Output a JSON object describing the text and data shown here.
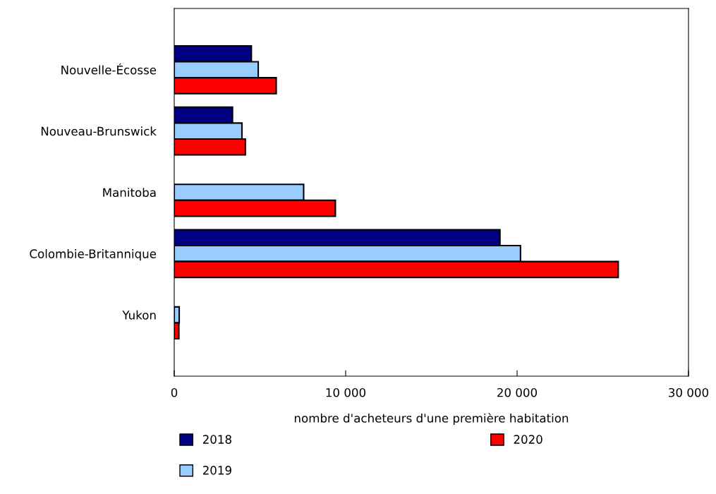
{
  "chart_data": {
    "type": "bar",
    "orientation": "horizontal",
    "xlabel": "nombre d'acheteurs d'une première habitation",
    "categories": [
      "Nouvelle-Écosse",
      "Nouveau-Brunswick",
      "Manitoba",
      "Colombie-Britannique",
      "Yukon"
    ],
    "series": [
      {
        "name": "2018",
        "color": "#000080",
        "values": [
          4500,
          3400,
          null,
          19000,
          null
        ]
      },
      {
        "name": "2019",
        "color": "#99ccff",
        "values": [
          4900,
          3950,
          7550,
          20200,
          290
        ]
      },
      {
        "name": "2020",
        "color": "#ff0000",
        "values": [
          5950,
          4150,
          9400,
          25900,
          270
        ]
      }
    ],
    "xlim": [
      0,
      30000
    ],
    "xticks": [
      {
        "value": 0,
        "label": "0"
      },
      {
        "value": 10000,
        "label": "10 000"
      },
      {
        "value": 20000,
        "label": "20 000"
      },
      {
        "value": 30000,
        "label": "30 000"
      }
    ],
    "grid": false,
    "legend": "bottom"
  }
}
